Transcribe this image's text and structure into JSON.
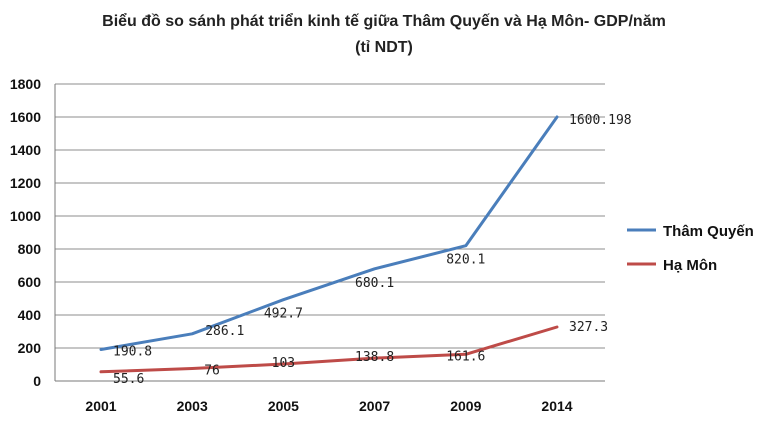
{
  "chart_data": {
    "type": "line",
    "title": "Biểu đồ so sánh phát triển kinh tế giữa Thâm Quyến và Hạ Môn- GDP/năm",
    "subtitle": "(tỉ NDT)",
    "xlabel": "",
    "ylabel": "",
    "categories": [
      "2001",
      "2003",
      "2005",
      "2007",
      "2009",
      "2014"
    ],
    "ylim": [
      0,
      1800
    ],
    "yticks": [
      0,
      200,
      400,
      600,
      800,
      1000,
      1200,
      1400,
      1600,
      1800
    ],
    "grid": true,
    "legend_position": "right",
    "series": [
      {
        "name": "Thâm Quyến",
        "color": "#4a7ebb",
        "values": [
          190.8,
          286.1,
          492.7,
          680.1,
          820.1,
          1600.198
        ],
        "labels": [
          "190.8",
          "286.1",
          "492.7",
          "680.1",
          "820.1",
          "1600.198"
        ]
      },
      {
        "name": "Hạ Môn",
        "color": "#be4b48",
        "values": [
          55.6,
          76,
          103,
          138.8,
          161.6,
          327.3
        ],
        "labels": [
          "55.6",
          "76",
          "103",
          "138.8",
          "161.6",
          "327.3"
        ]
      }
    ]
  }
}
